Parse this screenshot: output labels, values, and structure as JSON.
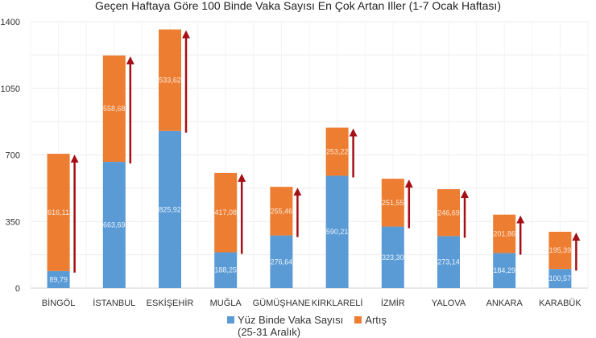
{
  "chart_data": {
    "type": "bar",
    "stacked": true,
    "title": "Geçen Haftaya Göre 100 Binde Vaka Sayısı En Çok Artan Iller (1-7 Ocak Haftası)",
    "categories": [
      "BİNGÖL",
      "İSTANBUL",
      "ESKİŞEHİR",
      "MUĞLA",
      "GÜMÜŞHANE",
      "KIRKLARELİ",
      "İZMİR",
      "YALOVA",
      "ANKARA",
      "KARABÜK"
    ],
    "series": [
      {
        "name": "Yüz Binde Vaka Sayısı (25-31 Aralık)",
        "name_line1": "Yüz Binde Vaka Sayısı",
        "name_line2": "(25-31 Aralık)",
        "color": "#5b9bd5",
        "values": [
          89.79,
          663.69,
          825.92,
          188.25,
          276.64,
          590.21,
          323.3,
          273.14,
          184.29,
          100.57
        ],
        "labels": [
          "89,79",
          "663,69",
          "825,92",
          "188,25",
          "276,64",
          "590,21",
          "323,30",
          "273,14",
          "184,29",
          "100,57"
        ]
      },
      {
        "name": "Artış",
        "color": "#ed7d31",
        "values": [
          616.11,
          558.68,
          533.62,
          417.08,
          255.46,
          253.22,
          251.55,
          246.69,
          201.86,
          195.39
        ],
        "labels": [
          "616,11",
          "558,68",
          "533,62",
          "417,08",
          "255,46",
          "253,22",
          "251,55",
          "246,69",
          "201,86",
          "195,39"
        ]
      }
    ],
    "arrow_color": "#a50f15",
    "ylim": [
      0,
      1400
    ],
    "yticks": [
      0,
      350,
      700,
      1050,
      1400
    ],
    "grid": true,
    "legend": "bottom"
  }
}
